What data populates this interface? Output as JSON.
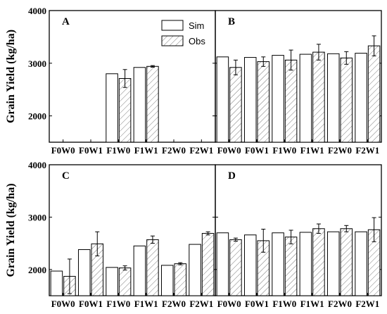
{
  "chart_data": [
    {
      "type": "bar",
      "panel": "A",
      "categories": [
        "F0W0",
        "F0W1",
        "F1W0",
        "F1W1",
        "F2W0",
        "F2W1"
      ],
      "ylabel": "Grain Yield (kg/ha)",
      "ylim": [
        1500,
        4000
      ],
      "yticks": [
        2000,
        3000,
        4000
      ],
      "legend": "top-center",
      "series": [
        {
          "name": "Sim",
          "values": [
            null,
            null,
            2800,
            2920,
            null,
            null
          ],
          "errors": [
            null,
            null,
            null,
            null,
            null,
            null
          ]
        },
        {
          "name": "Obs",
          "values": [
            null,
            null,
            2710,
            2940,
            null,
            null
          ],
          "errors": [
            null,
            null,
            170,
            15,
            null,
            null
          ]
        }
      ]
    },
    {
      "type": "bar",
      "panel": "B",
      "categories": [
        "F0W0",
        "F0W1",
        "F1W0",
        "F1W1",
        "F2W0",
        "F2W1"
      ],
      "ylabel": "",
      "ylim": [
        1500,
        4000
      ],
      "yticks": [
        2000,
        3000,
        4000
      ],
      "series": [
        {
          "name": "Sim",
          "values": [
            3120,
            3110,
            3150,
            3170,
            3180,
            3190
          ],
          "errors": [
            null,
            null,
            null,
            null,
            null,
            null
          ]
        },
        {
          "name": "Obs",
          "values": [
            2920,
            3030,
            3060,
            3210,
            3100,
            3330
          ],
          "errors": [
            140,
            90,
            190,
            150,
            120,
            190
          ]
        }
      ]
    },
    {
      "type": "bar",
      "panel": "C",
      "categories": [
        "F0W0",
        "F0W1",
        "F1W0",
        "F1W1",
        "F2W0",
        "F2W1"
      ],
      "ylabel": "Grain Yield (kg/ha)",
      "ylim": [
        1500,
        4000
      ],
      "yticks": [
        2000,
        3000,
        4000
      ],
      "series": [
        {
          "name": "Sim",
          "values": [
            1970,
            2380,
            2040,
            2450,
            2080,
            2480
          ],
          "errors": [
            null,
            null,
            null,
            null,
            null,
            null
          ]
        },
        {
          "name": "Obs",
          "values": [
            1870,
            2490,
            2030,
            2570,
            2110,
            2690
          ],
          "errors": [
            330,
            230,
            40,
            70,
            20,
            30
          ]
        }
      ]
    },
    {
      "type": "bar",
      "panel": "D",
      "categories": [
        "F0W0",
        "F0W1",
        "F1W0",
        "F1W1",
        "F2W0",
        "F2W1"
      ],
      "ylabel": "",
      "ylim": [
        1500,
        4000
      ],
      "yticks": [
        2000,
        3000,
        4000
      ],
      "series": [
        {
          "name": "Sim",
          "values": [
            2700,
            2660,
            2700,
            2710,
            2720,
            2720
          ],
          "errors": [
            null,
            null,
            null,
            null,
            null,
            null
          ]
        },
        {
          "name": "Obs",
          "values": [
            2570,
            2550,
            2620,
            2780,
            2780,
            2760
          ],
          "errors": [
            30,
            220,
            130,
            90,
            60,
            230
          ]
        }
      ]
    }
  ]
}
